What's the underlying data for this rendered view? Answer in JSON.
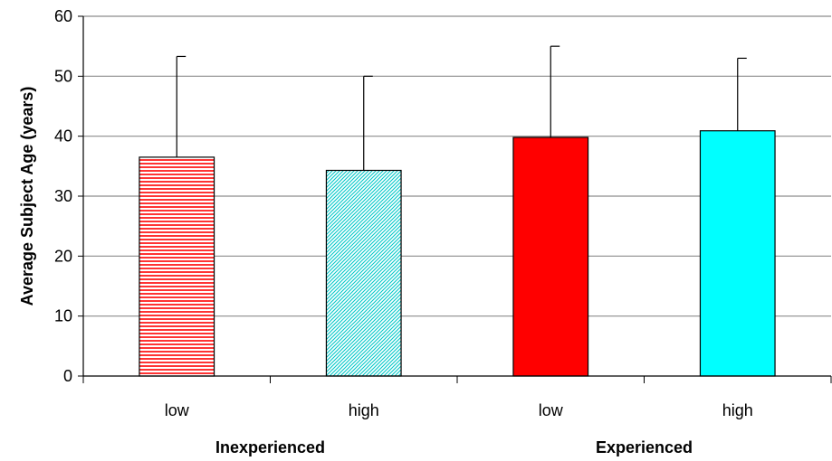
{
  "chart_data": {
    "type": "bar",
    "title": "",
    "ylabel": "Average Subject Age (years)",
    "ylim": [
      0,
      60
    ],
    "yticks": [
      0,
      10,
      20,
      30,
      40,
      50,
      60
    ],
    "grid": true,
    "legend": "none",
    "groups": [
      {
        "label": "Inexperienced",
        "categories": [
          "low",
          "high"
        ]
      },
      {
        "label": "Experienced",
        "categories": [
          "low",
          "high"
        ]
      }
    ],
    "bars": [
      {
        "group": "Inexperienced",
        "category": "low",
        "value": 36.5,
        "error_upper": 53.3,
        "color": "#ff0000",
        "fill": "horizontal-stripes"
      },
      {
        "group": "Inexperienced",
        "category": "high",
        "value": 34.3,
        "error_upper": 50.0,
        "color": "#00c8c8",
        "fill": "diagonal-hatch"
      },
      {
        "group": "Experienced",
        "category": "low",
        "value": 39.8,
        "error_upper": 55.0,
        "color": "#ff0000",
        "fill": "solid"
      },
      {
        "group": "Experienced",
        "category": "high",
        "value": 40.9,
        "error_upper": 53.0,
        "color": "#00ffff",
        "fill": "solid"
      }
    ]
  }
}
